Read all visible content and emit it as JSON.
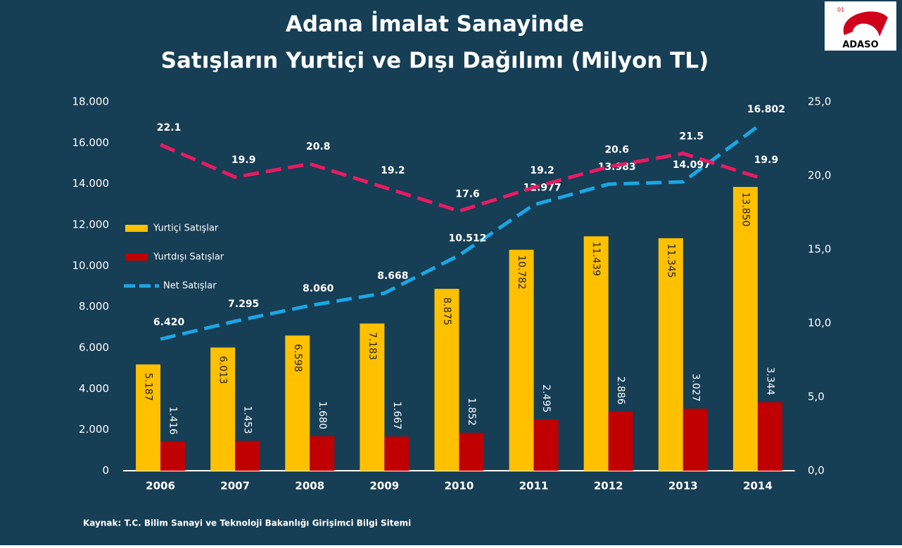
{
  "chart_data": {
    "type": "bar",
    "title": "Adana İmalat Sanayinde",
    "subtitle": "Satışların Yurtiçi ve Dışı Dağılımı (Milyon TL)",
    "logo": "ADASO",
    "logo_number": "01",
    "source": "Kaynak: T.C. Bilim Sanayi ve Teknoloji Bakanlığı Girişimci Bilgi Sitemi",
    "categories": [
      "2006",
      "2007",
      "2008",
      "2009",
      "2010",
      "2011",
      "2012",
      "2013",
      "2014"
    ],
    "series": [
      {
        "name": "Yurtiçi Satışlar",
        "type": "bar",
        "color": "#ffc000",
        "values": [
          5187,
          6013,
          6598,
          7183,
          8875,
          10782,
          11439,
          11345,
          13850
        ],
        "value_labels": [
          "5.187",
          "6.013",
          "6.598",
          "7.183",
          "8.875",
          "10.782",
          "11.439",
          "11.345",
          "13.850"
        ]
      },
      {
        "name": "Yurtdışı Satışlar",
        "type": "bar",
        "color": "#c00000",
        "values": [
          1416,
          1453,
          1680,
          1667,
          1852,
          2495,
          2886,
          3027,
          3344
        ],
        "value_labels": [
          "1.416",
          "1.453",
          "1.680",
          "1.667",
          "1.852",
          "2.495",
          "2.886",
          "3.027",
          "3.344"
        ]
      },
      {
        "name": "Net Satışlar",
        "type": "line",
        "color": "#1ca6e3",
        "values": [
          6420,
          7295,
          8060,
          8668,
          10512,
          12977,
          13983,
          14097,
          16802
        ],
        "value_labels": [
          "6.420",
          "7.295",
          "8.060",
          "8.668",
          "10.512",
          "12.977",
          "13.983",
          "14.097",
          "16.802"
        ]
      },
      {
        "type": "line",
        "axis": "y2",
        "color": "#ea1a62",
        "values": [
          22.1,
          19.9,
          20.8,
          19.2,
          17.6,
          19.2,
          20.6,
          21.5,
          19.9
        ]
      }
    ],
    "ylim": [
      0,
      18000
    ],
    "yticks": [
      0,
      {
        "value": 2000,
        "label": "2.000"
      },
      {
        "value": 4000,
        "label": "4.000"
      },
      {
        "value": 6000,
        "label": "6.000"
      },
      {
        "value": 8000,
        "label": "8.000"
      },
      {
        "value": 10000,
        "label": "10.000"
      },
      {
        "value": 12000,
        "label": "12.000"
      },
      {
        "value": 14000,
        "label": "14.000"
      },
      {
        "value": 16000,
        "label": "16.000"
      },
      {
        "value": 18000,
        "label": "18.000"
      }
    ],
    "y2lim": [
      0,
      25
    ],
    "y2ticks": [
      {
        "value": 0,
        "label": "0,0"
      },
      {
        "value": 5,
        "label": "5,0"
      },
      {
        "value": 10,
        "label": "10,0"
      },
      {
        "value": 15,
        "label": "15,0"
      },
      {
        "value": 20,
        "label": "20,0"
      },
      {
        "value": 25,
        "label": "25,0"
      }
    ],
    "legend": "left",
    "grid": false
  }
}
